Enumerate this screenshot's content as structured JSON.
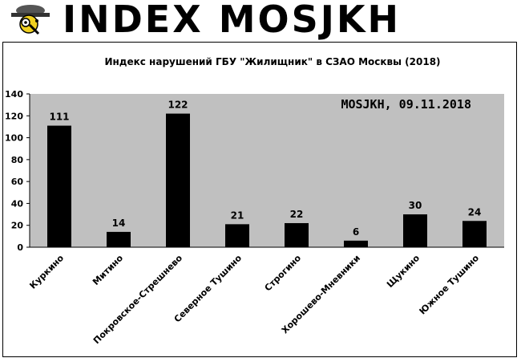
{
  "header": {
    "brand": "INDEX MOSJKH",
    "logo_icon": "detective-magnifier-icon"
  },
  "chart_data": {
    "type": "bar",
    "title": "Индекс нарушений ГБУ \"Жилищник\" в СЗАО Москвы (2018)",
    "annotation": "MOSJKH, 09.11.2018",
    "categories": [
      "Куркино",
      "Митино",
      "Покровское-Стрешнево",
      "Северное Тушино",
      "Строгино",
      "Хорошево-Мневники",
      "Щукино",
      "Южное Тушино"
    ],
    "values": [
      111,
      14,
      122,
      21,
      22,
      6,
      30,
      24
    ],
    "ylim": [
      0,
      140
    ],
    "yticks": [
      0,
      20,
      40,
      60,
      80,
      100,
      120,
      140
    ],
    "xlabel": "",
    "ylabel": "",
    "grid": false,
    "legend": "none",
    "colors": {
      "plot_bg": "#c0c0c0",
      "bar": "#000000",
      "frame": "#000000"
    }
  }
}
